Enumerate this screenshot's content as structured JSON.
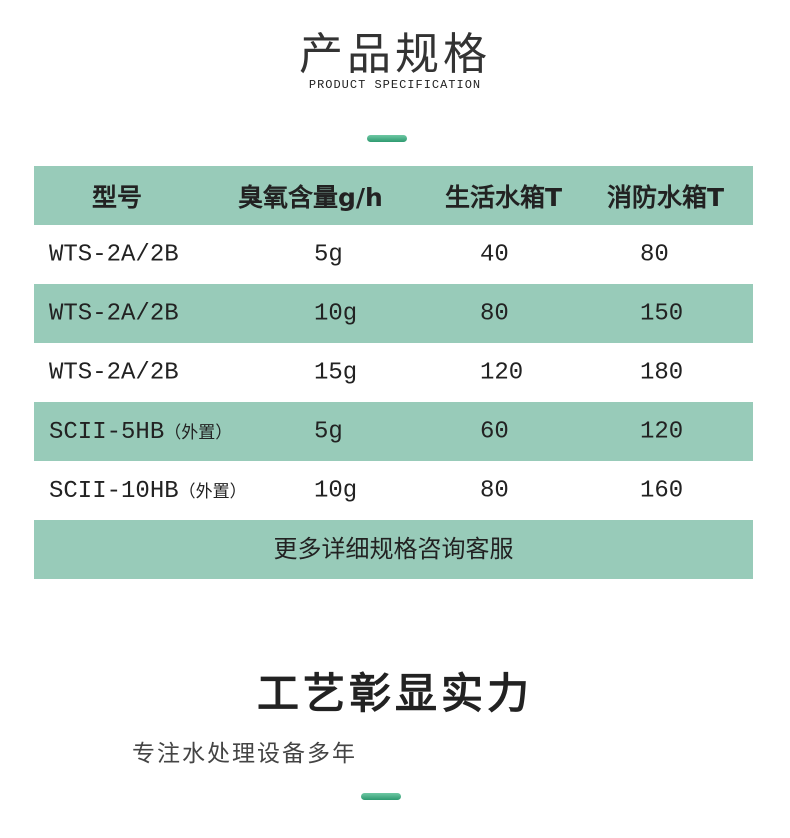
{
  "section1": {
    "title": "产品规格",
    "subtitle": "PRODUCT SPECIFICATION"
  },
  "table": {
    "headers": [
      "型号",
      "臭氧含量g/h",
      "生活水箱T",
      "消防水箱T"
    ],
    "rows": [
      {
        "model": "WTS-2A/2B",
        "note": "",
        "ozone": "5g",
        "living": "40",
        "fire": "80"
      },
      {
        "model": "WTS-2A/2B",
        "note": "",
        "ozone": "10g",
        "living": "80",
        "fire": "150"
      },
      {
        "model": "WTS-2A/2B",
        "note": "",
        "ozone": "15g",
        "living": "120",
        "fire": "180"
      },
      {
        "model": "SCII-5HB",
        "note": "（外置）",
        "ozone": "5g",
        "living": "60",
        "fire": "120"
      },
      {
        "model": "SCII-10HB",
        "note": "（外置）",
        "ozone": "10g",
        "living": "80",
        "fire": "160"
      }
    ],
    "footer": "更多详细规格咨询客服"
  },
  "section2": {
    "title": "工艺彰显实力",
    "subtitle": "专注水处理设备多年"
  },
  "colors": {
    "accent": "#98cbb9",
    "bar": "#2e9a70"
  }
}
